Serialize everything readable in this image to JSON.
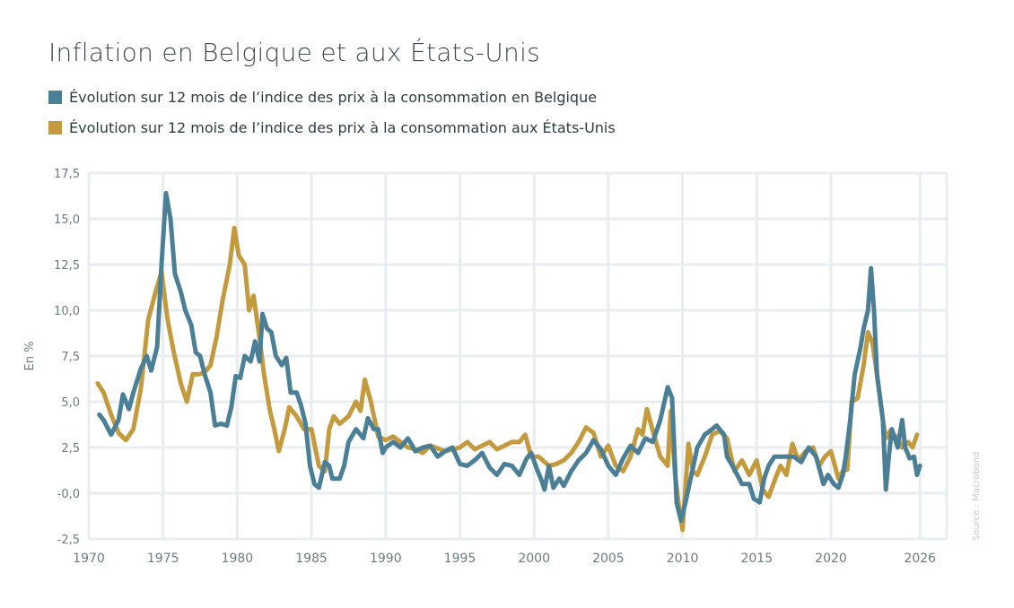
{
  "chart_data": {
    "type": "line",
    "title": "Inflation en Belgique et aux États-Unis",
    "ylabel": "En %",
    "xlabel": "",
    "source": "Source : Macrobond",
    "xlim": [
      1970,
      2027.8
    ],
    "ylim": [
      -2.5,
      17.5
    ],
    "xticks": [
      1970,
      1975,
      1980,
      1985,
      1990,
      1995,
      2000,
      2005,
      2010,
      2015,
      2020,
      2026
    ],
    "xtick_labels": [
      "1970",
      "1975",
      "1980",
      "1985",
      "1990",
      "1995",
      "2000",
      "2005",
      "2010",
      "2015",
      "2020",
      "2026"
    ],
    "yticks": [
      -2.5,
      0,
      2.5,
      5,
      7.5,
      10,
      12.5,
      15,
      17.5
    ],
    "ytick_labels": [
      "-2,5",
      "-0,0",
      "2,5",
      "5,0",
      "7,5",
      "10,0",
      "12,5",
      "15,0",
      "17,5"
    ],
    "grid": true,
    "legend_placement": "top-left",
    "series": [
      {
        "name": "Évolution sur 12 mois de l’indice des prix à la consommation aux États-Unis",
        "color": "#c49a3e",
        "points": [
          [
            1970.6,
            6.0
          ],
          [
            1971,
            5.5
          ],
          [
            1971.5,
            4.3
          ],
          [
            1972,
            3.3
          ],
          [
            1972.5,
            2.9
          ],
          [
            1973,
            3.5
          ],
          [
            1973.5,
            5.7
          ],
          [
            1974,
            9.5
          ],
          [
            1974.5,
            11.0
          ],
          [
            1974.9,
            12.1
          ],
          [
            1975.3,
            9.5
          ],
          [
            1975.7,
            7.8
          ],
          [
            1976.2,
            6.0
          ],
          [
            1976.6,
            5.0
          ],
          [
            1977,
            6.5
          ],
          [
            1977.4,
            6.5
          ],
          [
            1977.8,
            6.6
          ],
          [
            1978.2,
            7.0
          ],
          [
            1978.6,
            8.5
          ],
          [
            1979,
            10.5
          ],
          [
            1979.5,
            12.5
          ],
          [
            1979.8,
            14.5
          ],
          [
            1980.1,
            13.0
          ],
          [
            1980.5,
            12.5
          ],
          [
            1980.8,
            10.0
          ],
          [
            1981.1,
            10.8
          ],
          [
            1981.5,
            8.5
          ],
          [
            1981.8,
            6.5
          ],
          [
            1982.2,
            4.5
          ],
          [
            1982.5,
            3.5
          ],
          [
            1982.8,
            2.3
          ],
          [
            1983.2,
            3.5
          ],
          [
            1983.5,
            4.7
          ],
          [
            1984,
            4.2
          ],
          [
            1984.5,
            3.5
          ],
          [
            1985,
            3.5
          ],
          [
            1985.5,
            1.5
          ],
          [
            1985.9,
            1.2
          ],
          [
            1986.2,
            3.5
          ],
          [
            1986.5,
            4.2
          ],
          [
            1986.9,
            3.8
          ],
          [
            1987.5,
            4.2
          ],
          [
            1988,
            5.0
          ],
          [
            1988.3,
            4.5
          ],
          [
            1988.6,
            6.2
          ],
          [
            1989,
            5.0
          ],
          [
            1989.5,
            3.1
          ],
          [
            1990,
            2.9
          ],
          [
            1990.5,
            3.1
          ],
          [
            1991,
            2.8
          ],
          [
            1991.5,
            2.5
          ],
          [
            1992,
            2.4
          ],
          [
            1992.5,
            2.2
          ],
          [
            1993,
            2.6
          ],
          [
            1994,
            2.3
          ],
          [
            1995,
            2.5
          ],
          [
            1995.5,
            2.8
          ],
          [
            1996,
            2.4
          ],
          [
            1996.5,
            2.6
          ],
          [
            1997,
            2.8
          ],
          [
            1997.5,
            2.4
          ],
          [
            1998,
            2.6
          ],
          [
            1998.5,
            2.8
          ],
          [
            1999,
            2.8
          ],
          [
            1999.4,
            3.2
          ],
          [
            1999.8,
            2.0
          ],
          [
            2000.3,
            2.0
          ],
          [
            2001,
            1.5
          ],
          [
            2001.5,
            1.6
          ],
          [
            2002,
            1.8
          ],
          [
            2002.5,
            2.2
          ],
          [
            2003,
            2.8
          ],
          [
            2003.5,
            3.6
          ],
          [
            2004,
            3.3
          ],
          [
            2004.5,
            2.0
          ],
          [
            2005,
            2.6
          ],
          [
            2005.5,
            1.5
          ],
          [
            2006,
            1.2
          ],
          [
            2006.5,
            2.0
          ],
          [
            2007,
            3.5
          ],
          [
            2007.3,
            3.2
          ],
          [
            2007.6,
            4.6
          ],
          [
            2008,
            3.4
          ],
          [
            2008.5,
            2.0
          ],
          [
            2009,
            1.5
          ],
          [
            2009.2,
            4.5
          ],
          [
            2009.5,
            1.0
          ],
          [
            2009.8,
            -1.0
          ],
          [
            2010,
            -2.0
          ],
          [
            2010.4,
            2.7
          ],
          [
            2010.7,
            1.2
          ],
          [
            2011,
            1.0
          ],
          [
            2011.5,
            2.0
          ],
          [
            2012,
            3.2
          ],
          [
            2012.5,
            3.4
          ],
          [
            2013,
            3.0
          ],
          [
            2013.5,
            1.2
          ],
          [
            2014,
            1.8
          ],
          [
            2014.5,
            1.0
          ],
          [
            2015,
            1.8
          ],
          [
            2015.4,
            0.2
          ],
          [
            2015.8,
            -0.2
          ],
          [
            2016.3,
            0.9
          ],
          [
            2016.6,
            1.5
          ],
          [
            2017,
            1.0
          ],
          [
            2017.4,
            2.7
          ],
          [
            2017.8,
            1.8
          ],
          [
            2018.3,
            2.3
          ],
          [
            2018.8,
            2.5
          ],
          [
            2019.2,
            1.5
          ],
          [
            2019.6,
            2.0
          ],
          [
            2020,
            2.3
          ],
          [
            2020.5,
            0.8
          ],
          [
            2020.8,
            1.2
          ],
          [
            2021.1,
            1.3
          ],
          [
            2021.4,
            5.0
          ],
          [
            2021.8,
            5.2
          ],
          [
            2022.2,
            7.0
          ],
          [
            2022.5,
            8.8
          ],
          [
            2022.8,
            8.2
          ],
          [
            2023.1,
            6.5
          ],
          [
            2023.5,
            4.0
          ],
          [
            2023.7,
            3.0
          ],
          [
            2024,
            3.4
          ],
          [
            2024.5,
            3.0
          ],
          [
            2024.8,
            2.5
          ],
          [
            2025.2,
            2.8
          ],
          [
            2025.5,
            2.5
          ],
          [
            2025.8,
            3.2
          ]
        ]
      },
      {
        "name": "Évolution sur 12 mois de l’indice des prix à la consommation en Belgique",
        "color": "#4a7f96",
        "points": [
          [
            1970.7,
            4.3
          ],
          [
            1971,
            4.0
          ],
          [
            1971.5,
            3.2
          ],
          [
            1972,
            4.0
          ],
          [
            1972.3,
            5.4
          ],
          [
            1972.7,
            4.6
          ],
          [
            1973,
            5.5
          ],
          [
            1973.5,
            6.8
          ],
          [
            1973.9,
            7.5
          ],
          [
            1974.2,
            6.7
          ],
          [
            1974.6,
            8.0
          ],
          [
            1974.9,
            12.5
          ],
          [
            1975.2,
            16.4
          ],
          [
            1975.5,
            15.0
          ],
          [
            1975.8,
            12.0
          ],
          [
            1976.2,
            11.0
          ],
          [
            1976.5,
            10.0
          ],
          [
            1976.9,
            9.2
          ],
          [
            1977.2,
            7.7
          ],
          [
            1977.5,
            7.5
          ],
          [
            1977.8,
            6.5
          ],
          [
            1978.2,
            5.5
          ],
          [
            1978.5,
            3.7
          ],
          [
            1978.9,
            3.8
          ],
          [
            1979.3,
            3.7
          ],
          [
            1979.6,
            4.7
          ],
          [
            1979.9,
            6.4
          ],
          [
            1980.2,
            6.3
          ],
          [
            1980.5,
            7.5
          ],
          [
            1980.9,
            7.2
          ],
          [
            1981.2,
            8.3
          ],
          [
            1981.5,
            7.2
          ],
          [
            1981.7,
            9.8
          ],
          [
            1982,
            9.0
          ],
          [
            1982.3,
            8.8
          ],
          [
            1982.6,
            7.5
          ],
          [
            1983,
            7.0
          ],
          [
            1983.3,
            7.4
          ],
          [
            1983.6,
            5.5
          ],
          [
            1984,
            5.5
          ],
          [
            1984.3,
            4.8
          ],
          [
            1984.6,
            3.8
          ],
          [
            1984.9,
            1.5
          ],
          [
            1985.2,
            0.5
          ],
          [
            1985.5,
            0.3
          ],
          [
            1985.9,
            1.7
          ],
          [
            1986.2,
            1.5
          ],
          [
            1986.4,
            0.8
          ],
          [
            1986.9,
            0.8
          ],
          [
            1987.2,
            1.5
          ],
          [
            1987.5,
            2.8
          ],
          [
            1988,
            3.5
          ],
          [
            1988.5,
            3.0
          ],
          [
            1988.8,
            4.1
          ],
          [
            1989.2,
            3.5
          ],
          [
            1989.5,
            3.5
          ],
          [
            1989.8,
            2.2
          ],
          [
            1990,
            2.5
          ],
          [
            1990.5,
            2.8
          ],
          [
            1991,
            2.5
          ],
          [
            1991.5,
            3.0
          ],
          [
            1992,
            2.3
          ],
          [
            1992.5,
            2.5
          ],
          [
            1993,
            2.6
          ],
          [
            1993.5,
            2.0
          ],
          [
            1994,
            2.3
          ],
          [
            1994.5,
            2.5
          ],
          [
            1995,
            1.6
          ],
          [
            1995.5,
            1.5
          ],
          [
            1996,
            1.8
          ],
          [
            1996.5,
            2.2
          ],
          [
            1997,
            1.4
          ],
          [
            1997.5,
            1.0
          ],
          [
            1998,
            1.6
          ],
          [
            1998.5,
            1.5
          ],
          [
            1999,
            1.0
          ],
          [
            1999.5,
            1.9
          ],
          [
            1999.8,
            2.2
          ],
          [
            2000.2,
            1.3
          ],
          [
            2000.5,
            0.7
          ],
          [
            2000.7,
            0.2
          ],
          [
            2001,
            1.5
          ],
          [
            2001.3,
            0.3
          ],
          [
            2001.7,
            0.8
          ],
          [
            2002,
            0.4
          ],
          [
            2002.5,
            1.2
          ],
          [
            2003,
            1.8
          ],
          [
            2003.5,
            2.2
          ],
          [
            2004,
            2.9
          ],
          [
            2004.5,
            2.4
          ],
          [
            2005,
            1.5
          ],
          [
            2005.5,
            1.0
          ],
          [
            2006,
            1.9
          ],
          [
            2006.5,
            2.6
          ],
          [
            2007,
            2.2
          ],
          [
            2007.5,
            3.0
          ],
          [
            2008,
            2.8
          ],
          [
            2008.5,
            4.0
          ],
          [
            2009,
            5.8
          ],
          [
            2009.3,
            5.2
          ],
          [
            2009.6,
            -0.5
          ],
          [
            2009.9,
            -1.5
          ],
          [
            2010.2,
            -0.5
          ],
          [
            2010.6,
            1.0
          ],
          [
            2011,
            2.5
          ],
          [
            2011.5,
            3.2
          ],
          [
            2012,
            3.5
          ],
          [
            2012.3,
            3.7
          ],
          [
            2012.8,
            3.2
          ],
          [
            2013,
            2.0
          ],
          [
            2013.5,
            1.3
          ],
          [
            2014,
            0.5
          ],
          [
            2014.5,
            0.5
          ],
          [
            2014.8,
            -0.3
          ],
          [
            2015.2,
            -0.5
          ],
          [
            2015.5,
            0.8
          ],
          [
            2015.8,
            1.5
          ],
          [
            2016.2,
            2.0
          ],
          [
            2016.5,
            2.0
          ],
          [
            2017,
            2.0
          ],
          [
            2017.5,
            2.0
          ],
          [
            2018,
            1.7
          ],
          [
            2018.5,
            2.5
          ],
          [
            2019,
            2.0
          ],
          [
            2019.5,
            0.5
          ],
          [
            2019.8,
            1.0
          ],
          [
            2020.2,
            0.5
          ],
          [
            2020.5,
            0.3
          ],
          [
            2020.8,
            1.0
          ],
          [
            2021,
            2.0
          ],
          [
            2021.3,
            4.0
          ],
          [
            2021.6,
            6.5
          ],
          [
            2022,
            8.0
          ],
          [
            2022.2,
            9.0
          ],
          [
            2022.5,
            10.0
          ],
          [
            2022.7,
            12.3
          ],
          [
            2022.9,
            10.0
          ],
          [
            2023.1,
            6.5
          ],
          [
            2023.5,
            4.0
          ],
          [
            2023.7,
            0.2
          ],
          [
            2023.9,
            2.0
          ],
          [
            2024.1,
            3.5
          ],
          [
            2024.5,
            2.5
          ],
          [
            2024.8,
            4.0
          ],
          [
            2025,
            2.5
          ],
          [
            2025.3,
            1.9
          ],
          [
            2025.6,
            2.0
          ],
          [
            2025.8,
            1.0
          ],
          [
            2026,
            1.5
          ]
        ]
      }
    ]
  },
  "legend": [
    {
      "label": "Évolution sur 12 mois de l’indice des prix à la consommation en Belgique",
      "color": "#4a7f96"
    },
    {
      "label": "Évolution sur 12 mois de l’indice des prix à la consommation aux États-Unis",
      "color": "#c49a3e"
    }
  ]
}
